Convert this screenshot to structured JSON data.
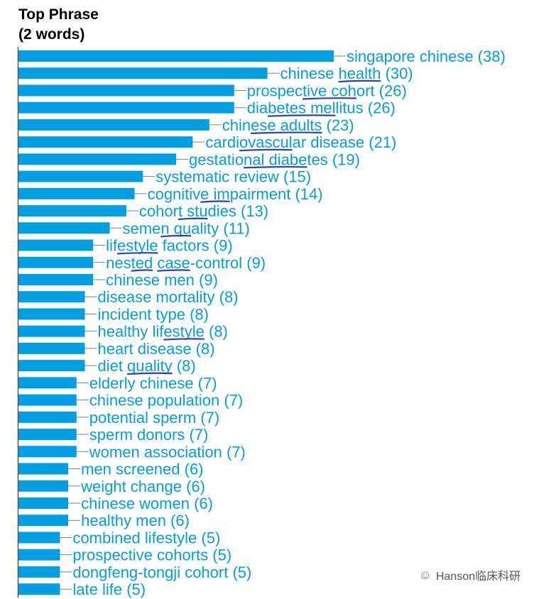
{
  "title": {
    "line1": "Top Phrase",
    "line2": "(2 words)"
  },
  "watermark": "Hanson临床科研",
  "colors": {
    "bar": "#009fe3",
    "label": "#009fe3",
    "annotation": "#2f3fbf"
  },
  "chart_data": {
    "type": "bar",
    "orientation": "horizontal",
    "title": "Top Phrase (2 words)",
    "xlim": [
      0,
      38
    ],
    "grid": false,
    "label_format": "{category} ({value})",
    "categories": [
      "singapore chinese",
      "chinese health",
      "prospective cohort",
      "diabetes mellitus",
      "chinese adults",
      "cardiovascular disease",
      "gestational diabetes",
      "systematic review",
      "cognitive impairment",
      "cohort studies",
      "semen quality",
      "lifestyle factors",
      "nested case-control",
      "chinese men",
      "disease mortality",
      "incident type",
      "healthy lifestyle",
      "heart disease",
      "diet quality",
      "elderly chinese",
      "chinese population",
      "potential sperm",
      "sperm donors",
      "women association",
      "men screened",
      "weight change",
      "chinese women",
      "healthy men",
      "combined lifestyle",
      "prospective cohorts",
      "dongfeng-tongji cohort",
      "late life"
    ],
    "values": [
      38,
      30,
      26,
      26,
      23,
      21,
      19,
      15,
      14,
      13,
      11,
      9,
      9,
      9,
      8,
      8,
      8,
      8,
      8,
      7,
      7,
      7,
      7,
      7,
      6,
      6,
      6,
      6,
      5,
      5,
      5,
      5
    ],
    "underlined_terms": [
      {
        "row": 1,
        "term": "health"
      },
      {
        "row": 2,
        "term": "tive coh"
      },
      {
        "row": 3,
        "term": "betes mel"
      },
      {
        "row": 4,
        "term": "ese adults"
      },
      {
        "row": 5,
        "term": "ovascul"
      },
      {
        "row": 6,
        "term": "nal diabe"
      },
      {
        "row": 8,
        "term": "e im"
      },
      {
        "row": 9,
        "term": "t stu"
      },
      {
        "row": 10,
        "term": "n qu"
      },
      {
        "row": 11,
        "term": "estyle"
      },
      {
        "row": 12,
        "term": "ted"
      },
      {
        "row": 12,
        "term": "case"
      },
      {
        "row": 16,
        "term": "estyle"
      },
      {
        "row": 18,
        "term": "quality"
      }
    ]
  }
}
